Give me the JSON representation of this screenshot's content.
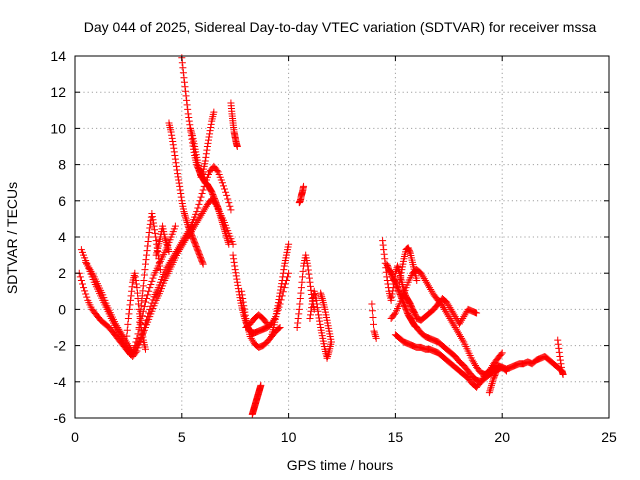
{
  "chart_data": {
    "type": "scatter",
    "title": "Day 044 of 2025, Sidereal Day-to-day VTEC variation (SDTVAR) for receiver mssa",
    "xlabel": "GPS time / hours",
    "ylabel": "SDTVAR / TECUs",
    "xlim": [
      0,
      25
    ],
    "ylim": [
      -6,
      14
    ],
    "xticks": [
      0,
      5,
      10,
      15,
      20,
      25
    ],
    "yticks": [
      -6,
      -4,
      -2,
      0,
      2,
      4,
      6,
      8,
      10,
      12,
      14
    ],
    "grid": true,
    "marker": "+",
    "series": [
      {
        "name": "SDTVAR",
        "color": "#ff0000",
        "tracks": [
          {
            "x": [
              0.2,
              0.4,
              0.6,
              0.8,
              1.0,
              1.2,
              1.4,
              1.6,
              1.8,
              2.0,
              2.2,
              2.4,
              2.6,
              2.8,
              3.0,
              3.2,
              3.4,
              3.6,
              3.8,
              4.0,
              4.2,
              4.4,
              4.6,
              4.8,
              5.0,
              5.2,
              5.4,
              5.6,
              5.8,
              6.0,
              6.2,
              6.4,
              6.6,
              6.8,
              7.0,
              7.2,
              7.4
            ],
            "y": [
              2.0,
              1.2,
              0.5,
              0.0,
              -0.3,
              -0.6,
              -0.8,
              -1.0,
              -1.3,
              -1.6,
              -1.9,
              -2.2,
              -2.5,
              -2.2,
              -1.8,
              -1.3,
              -0.7,
              -0.1,
              0.5,
              1.0,
              1.6,
              2.1,
              2.6,
              3.1,
              3.5,
              3.9,
              4.2,
              4.6,
              5.0,
              5.4,
              5.8,
              6.1,
              5.8,
              5.3,
              4.8,
              4.2,
              3.6
            ]
          },
          {
            "x": [
              0.3,
              0.5,
              0.7,
              0.9,
              1.1,
              1.3,
              1.5,
              1.7,
              1.9,
              2.1,
              2.3,
              2.5,
              2.7,
              2.9,
              3.1,
              3.3,
              3.5,
              3.7,
              3.9,
              4.1,
              4.3,
              4.5,
              4.7,
              4.9,
              5.1,
              5.3,
              5.5,
              5.7,
              5.9,
              6.1,
              6.3,
              6.5,
              6.7,
              6.9,
              7.1,
              7.3
            ],
            "y": [
              3.3,
              2.7,
              2.1,
              1.5,
              1.0,
              0.5,
              0.0,
              -0.5,
              -1.0,
              -1.5,
              -1.9,
              -2.3,
              -2.6,
              -2.3,
              -1.6,
              -0.8,
              0.0,
              0.7,
              1.2,
              1.8,
              2.3,
              2.7,
              3.1,
              3.5,
              3.9,
              4.3,
              4.8,
              5.4,
              6.2,
              7.0,
              7.6,
              7.9,
              7.6,
              7.0,
              6.3,
              5.5
            ]
          },
          {
            "x": [
              0.5,
              0.7,
              0.9,
              1.1,
              1.3,
              1.5,
              1.7,
              1.9,
              2.1,
              2.3,
              2.5,
              2.7,
              2.9,
              3.1,
              3.3,
              3.5,
              3.7,
              3.9,
              4.1,
              4.3,
              4.5,
              4.7
            ],
            "y": [
              2.6,
              2.2,
              1.8,
              1.3,
              0.8,
              0.2,
              -0.3,
              -0.8,
              -1.2,
              -1.6,
              -2.0,
              -2.4,
              -1.6,
              -0.6,
              0.4,
              1.2,
              1.9,
              2.4,
              2.9,
              3.4,
              4.0,
              4.6
            ]
          },
          {
            "x": [
              2.4,
              2.5,
              2.6,
              2.7,
              2.8,
              2.9,
              3.0,
              3.1,
              3.2,
              3.3
            ],
            "y": [
              -1.8,
              -0.5,
              0.5,
              1.5,
              2.0,
              1.2,
              0.0,
              -1.0,
              -1.7,
              -2.2
            ]
          },
          {
            "x": [
              3.0,
              3.1,
              3.2,
              3.3,
              3.4,
              3.5,
              3.6,
              3.7,
              3.8,
              3.9,
              4.0
            ],
            "y": [
              -1.0,
              0.2,
              1.3,
              2.5,
              3.5,
              4.5,
              5.3,
              4.6,
              3.8,
              3.0,
              2.2
            ]
          },
          {
            "x": [
              3.8,
              3.9,
              4.0,
              4.1,
              4.2,
              4.3,
              4.4
            ],
            "y": [
              3.0,
              3.5,
              4.0,
              4.6,
              4.0,
              3.6,
              3.2
            ]
          },
          {
            "x": [
              4.4,
              4.5,
              4.6,
              4.7,
              4.8,
              4.9,
              5.0,
              5.1,
              5.2,
              5.3,
              5.4,
              5.5,
              5.6,
              5.7,
              5.8,
              5.9,
              6.0
            ],
            "y": [
              10.3,
              9.8,
              9.1,
              8.3,
              7.5,
              6.8,
              6.0,
              5.4,
              5.0,
              4.6,
              4.3,
              4.0,
              3.7,
              3.4,
              3.1,
              2.8,
              2.5
            ]
          },
          {
            "x": [
              5.0,
              5.1,
              5.2,
              5.3,
              5.4,
              5.5,
              5.6,
              5.7,
              5.8,
              5.9,
              6.0,
              6.1,
              6.2,
              6.3,
              6.4,
              6.5,
              6.6,
              6.7,
              6.8,
              6.9,
              7.0,
              7.1,
              7.2
            ],
            "y": [
              13.9,
              12.8,
              11.8,
              10.8,
              10.0,
              9.2,
              8.5,
              8.0,
              7.7,
              7.4,
              7.2,
              7.0,
              6.9,
              6.7,
              6.5,
              6.2,
              5.9,
              5.6,
              5.2,
              4.8,
              4.4,
              4.0,
              3.6
            ]
          },
          {
            "x": [
              5.4,
              5.5,
              5.6,
              5.7,
              5.8,
              5.9,
              6.0,
              6.1,
              6.2,
              6.3,
              6.4,
              6.5
            ],
            "y": [
              10.0,
              9.6,
              9.0,
              8.4,
              7.8,
              7.3,
              7.6,
              8.2,
              9.0,
              9.7,
              10.4,
              10.9
            ]
          },
          {
            "x": [
              7.3,
              7.35,
              7.4,
              7.45,
              7.5,
              7.55,
              7.6
            ],
            "y": [
              11.4,
              10.8,
              10.3,
              9.8,
              9.5,
              9.2,
              9.0
            ]
          },
          {
            "x": [
              7.4,
              7.5,
              7.6,
              7.7,
              7.8,
              7.9,
              8.0,
              8.1,
              8.2,
              8.3,
              8.4,
              8.6,
              8.8,
              9.0,
              9.2,
              9.4,
              9.6,
              9.8,
              10.0
            ],
            "y": [
              3.0,
              2.2,
              1.5,
              0.8,
              0.2,
              -0.3,
              -0.7,
              -1.0,
              -1.2,
              -1.3,
              -1.3,
              -1.2,
              -1.1,
              -1.0,
              -0.8,
              -0.4,
              0.3,
              1.2,
              2.0
            ]
          },
          {
            "x": [
              7.8,
              7.9,
              8.0,
              8.1,
              8.2,
              8.4,
              8.6,
              8.8,
              9.0,
              9.2,
              9.4,
              9.6
            ],
            "y": [
              1.0,
              0.2,
              -0.5,
              -1.0,
              -1.5,
              -1.9,
              -2.1,
              -2.0,
              -1.8,
              -1.5,
              -1.2,
              -1.0
            ]
          },
          {
            "x": [
              8.0,
              8.2,
              8.4,
              8.6,
              8.8,
              9.0
            ],
            "y": [
              -1.0,
              -0.8,
              -0.5,
              -0.3,
              -0.5,
              -0.8
            ]
          },
          {
            "x": [
              8.3,
              8.35,
              8.4,
              8.45,
              8.5,
              8.55,
              8.6,
              8.65,
              8.7
            ],
            "y": [
              -5.8,
              -5.6,
              -5.4,
              -5.2,
              -5.0,
              -4.8,
              -4.6,
              -4.4,
              -4.2
            ]
          },
          {
            "x": [
              9.2,
              9.3,
              9.4,
              9.5,
              9.6,
              9.7,
              9.8,
              9.9,
              10.0
            ],
            "y": [
              -1.5,
              -1.0,
              -0.4,
              0.2,
              0.9,
              1.6,
              2.4,
              3.0,
              3.6
            ]
          },
          {
            "x": [
              10.5,
              10.55,
              10.6,
              10.65,
              10.7
            ],
            "y": [
              5.9,
              6.0,
              6.3,
              6.5,
              6.8
            ]
          },
          {
            "x": [
              10.4,
              10.5,
              10.6,
              10.7,
              10.8,
              10.9,
              11.0,
              11.1,
              11.2
            ],
            "y": [
              -1.0,
              0.0,
              1.2,
              2.4,
              3.0,
              2.4,
              1.5,
              0.6,
              0.0
            ]
          },
          {
            "x": [
              11.0,
              11.1,
              11.2,
              11.3,
              11.4,
              11.5,
              11.6,
              11.7,
              11.8,
              11.9,
              12.0
            ],
            "y": [
              -0.5,
              0.3,
              1.0,
              0.5,
              -0.3,
              -1.0,
              -1.6,
              -2.2,
              -2.7,
              -2.3,
              -1.8
            ]
          },
          {
            "x": [
              11.5,
              11.6,
              11.7,
              11.8,
              11.9,
              12.0
            ],
            "y": [
              0.9,
              0.5,
              0.0,
              -0.6,
              -1.2,
              -1.8
            ]
          },
          {
            "x": [
              13.9,
              14.0,
              14.1
            ],
            "y": [
              0.3,
              -1.2,
              -1.6
            ]
          },
          {
            "x": [
              14.4,
              14.5,
              14.6,
              14.7,
              14.8,
              14.9,
              15.0,
              15.1,
              15.2,
              15.3,
              15.4,
              15.5,
              15.6,
              15.7,
              15.8,
              15.9,
              16.0,
              16.2,
              16.4,
              16.6,
              16.8,
              17.0,
              17.2,
              17.4,
              17.6,
              17.8,
              18.0,
              18.2,
              18.4,
              18.6,
              18.8
            ],
            "y": [
              3.8,
              2.8,
              1.8,
              1.0,
              0.5,
              1.2,
              2.0,
              2.4,
              2.0,
              1.5,
              1.0,
              0.7,
              0.5,
              0.3,
              0.0,
              -0.2,
              -0.5,
              -0.6,
              -0.4,
              -0.2,
              0.0,
              0.3,
              0.6,
              0.4,
              0.0,
              -0.4,
              -0.8,
              -0.4,
              0.0,
              -0.1,
              -0.2
            ]
          },
          {
            "x": [
              14.6,
              14.7,
              14.8,
              14.9,
              15.0,
              15.1,
              15.2,
              15.3,
              15.4,
              15.5,
              15.6,
              15.7,
              15.8,
              15.9,
              16.0,
              16.2,
              16.4,
              16.6,
              16.8,
              17.0,
              17.2,
              17.4,
              17.6,
              17.8,
              18.0,
              18.2,
              18.4,
              18.6,
              18.8,
              19.0,
              19.2,
              19.4,
              19.6,
              19.8,
              20.0,
              20.2,
              20.4,
              20.6,
              20.8,
              21.0,
              21.2,
              21.4,
              21.6,
              21.8,
              22.0,
              22.2,
              22.4,
              22.6,
              22.8
            ],
            "y": [
              2.5,
              2.2,
              2.0,
              1.7,
              1.5,
              1.2,
              0.9,
              0.6,
              0.3,
              0.0,
              -0.3,
              -0.5,
              -0.7,
              -0.9,
              -1.0,
              -1.3,
              -1.5,
              -1.6,
              -1.7,
              -1.8,
              -2.0,
              -2.2,
              -2.4,
              -2.6,
              -2.9,
              -3.1,
              -3.4,
              -3.7,
              -3.9,
              -4.0,
              -3.8,
              -3.6,
              -3.4,
              -3.3,
              -3.2,
              -3.3,
              -3.2,
              -3.1,
              -3.0,
              -3.0,
              -2.9,
              -3.0,
              -2.8,
              -2.7,
              -2.6,
              -2.8,
              -3.0,
              -3.2,
              -3.4
            ]
          },
          {
            "x": [
              14.8,
              15.0,
              15.2,
              15.4,
              15.6,
              15.8,
              16.0,
              16.2,
              16.4,
              16.6,
              16.8,
              17.0,
              17.2,
              17.4,
              17.6,
              17.8,
              18.0,
              18.2,
              18.4,
              18.6,
              18.8,
              19.0,
              19.2,
              19.4,
              19.6,
              19.8,
              20.0
            ],
            "y": [
              -0.5,
              -0.2,
              0.3,
              0.9,
              1.5,
              2.0,
              2.2,
              2.0,
              1.6,
              1.2,
              0.8,
              0.5,
              0.2,
              -0.2,
              -0.6,
              -1.0,
              -1.4,
              -1.8,
              -2.3,
              -2.8,
              -3.2,
              -3.5,
              -3.6,
              -3.4,
              -3.0,
              -2.7,
              -2.4
            ]
          },
          {
            "x": [
              15.0,
              15.2,
              15.4,
              15.6,
              15.8,
              16.0,
              16.2,
              16.4,
              16.6,
              16.8,
              17.0,
              17.2,
              17.4,
              17.6,
              17.8,
              18.0,
              18.2,
              18.4,
              18.6,
              18.8,
              19.0,
              19.2,
              19.4,
              19.6,
              19.8,
              20.0,
              20.2
            ],
            "y": [
              -1.4,
              -1.6,
              -1.8,
              -1.9,
              -2.0,
              -2.1,
              -2.1,
              -2.2,
              -2.2,
              -2.3,
              -2.4,
              -2.6,
              -2.8,
              -3.0,
              -3.2,
              -3.4,
              -3.6,
              -3.8,
              -4.1,
              -4.3,
              -4.0,
              -3.6,
              -3.4,
              -3.2,
              -3.1,
              -3.2,
              -3.4
            ]
          },
          {
            "x": [
              15.2,
              15.3,
              15.4,
              15.5,
              15.6,
              15.7,
              15.8,
              15.9,
              16.0
            ],
            "y": [
              1.5,
              2.2,
              2.8,
              3.3,
              3.4,
              3.1,
              2.6,
              2.1,
              1.6
            ]
          },
          {
            "x": [
              19.4,
              19.5,
              19.6,
              19.7,
              19.8
            ],
            "y": [
              -4.6,
              -4.2,
              -3.8,
              -3.5,
              -3.2
            ]
          },
          {
            "x": [
              22.6,
              22.7,
              22.8,
              22.85
            ],
            "y": [
              -1.7,
              -2.6,
              -3.4,
              -3.6
            ]
          }
        ]
      }
    ]
  }
}
